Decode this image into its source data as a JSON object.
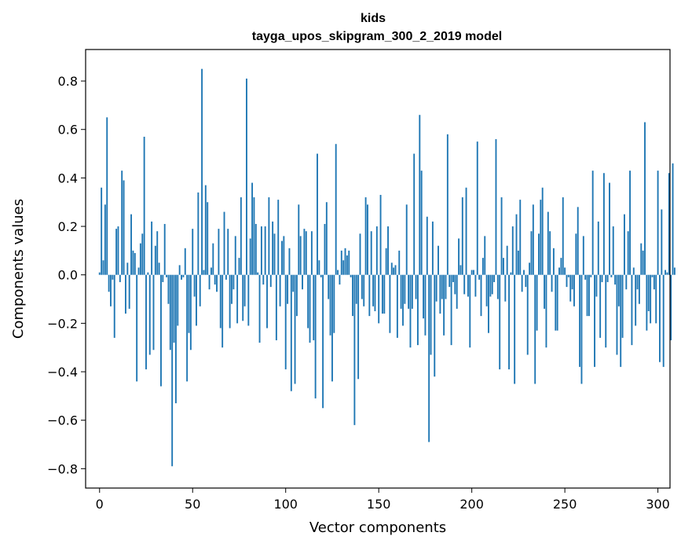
{
  "chart_data": {
    "type": "bar",
    "title": "kids",
    "subtitle": "tayga_upos_skipgram_300_2_2019 model",
    "xlabel": "Vector components",
    "ylabel": "Components values",
    "xlim": [
      -7.5,
      306.5
    ],
    "ylim": [
      -0.88,
      0.93
    ],
    "grid": false,
    "bar_color": "#1f77b4",
    "x_ticks": [
      0,
      50,
      100,
      150,
      200,
      250,
      300
    ],
    "x_tick_labels": [
      "0",
      "50",
      "100",
      "150",
      "200",
      "250",
      "300"
    ],
    "y_ticks": [
      -0.8,
      -0.6,
      -0.4,
      -0.2,
      0.0,
      0.2,
      0.4,
      0.6,
      0.8
    ],
    "y_tick_labels": [
      "−0.8",
      "−0.6",
      "−0.4",
      "−0.2",
      "0.0",
      "0.2",
      "0.4",
      "0.6",
      "0.8"
    ],
    "values": [
      0.01,
      0.36,
      0.06,
      0.29,
      0.65,
      -0.07,
      -0.13,
      -0.02,
      -0.26,
      0.19,
      0.2,
      -0.03,
      0.43,
      0.39,
      -0.16,
      0.05,
      -0.14,
      0.25,
      0.1,
      0.09,
      -0.44,
      0.03,
      0.13,
      0.17,
      0.57,
      -0.39,
      0.01,
      -0.33,
      0.22,
      -0.31,
      0.12,
      0.18,
      0.05,
      -0.46,
      -0.03,
      0.21,
      -0.01,
      -0.12,
      -0.31,
      -0.79,
      -0.28,
      -0.53,
      -0.21,
      0.04,
      -0.02,
      -0.01,
      0.11,
      -0.44,
      -0.24,
      -0.31,
      0.19,
      -0.09,
      -0.21,
      0.34,
      -0.13,
      0.85,
      0.02,
      0.37,
      0.3,
      -0.06,
      0.03,
      0.13,
      -0.04,
      -0.07,
      0.19,
      -0.22,
      -0.3,
      0.26,
      -0.02,
      0.19,
      -0.22,
      -0.12,
      -0.06,
      0.16,
      -0.2,
      0.07,
      0.32,
      -0.19,
      -0.13,
      0.81,
      -0.21,
      0.15,
      0.38,
      0.32,
      0.21,
      0.01,
      -0.28,
      0.2,
      -0.04,
      0.2,
      -0.22,
      0.32,
      -0.05,
      0.22,
      0.17,
      -0.27,
      0.31,
      -0.13,
      0.14,
      0.16,
      -0.39,
      -0.12,
      0.11,
      -0.48,
      -0.07,
      -0.45,
      -0.17,
      0.29,
      0.16,
      -0.06,
      0.19,
      0.18,
      -0.22,
      -0.28,
      0.18,
      -0.27,
      -0.51,
      0.5,
      0.06,
      -0.01,
      -0.55,
      0.21,
      0.3,
      -0.1,
      -0.25,
      -0.44,
      -0.24,
      0.54,
      0.02,
      -0.04,
      0.1,
      0.06,
      0.11,
      0.08,
      0.1,
      -0.01,
      -0.17,
      -0.62,
      -0.12,
      -0.43,
      0.17,
      -0.1,
      -0.13,
      0.32,
      0.29,
      -0.17,
      0.18,
      -0.13,
      -0.15,
      0.2,
      -0.2,
      0.33,
      -0.16,
      -0.16,
      0.11,
      0.2,
      -0.24,
      0.05,
      0.03,
      0.04,
      -0.26,
      0.1,
      -0.14,
      -0.21,
      -0.12,
      0.29,
      -0.14,
      -0.3,
      -0.14,
      0.5,
      -0.1,
      -0.29,
      0.66,
      0.43,
      -0.18,
      -0.25,
      0.24,
      -0.69,
      -0.33,
      0.22,
      -0.42,
      -0.11,
      0.12,
      -0.16,
      -0.1,
      -0.25,
      -0.1,
      0.58,
      -0.05,
      -0.29,
      -0.03,
      -0.08,
      -0.14,
      0.15,
      0.04,
      0.32,
      -0.08,
      0.36,
      -0.09,
      -0.3,
      0.02,
      0.02,
      -0.09,
      0.55,
      -0.02,
      -0.17,
      0.07,
      0.16,
      -0.13,
      -0.24,
      -0.09,
      -0.08,
      -0.03,
      0.56,
      -0.1,
      -0.39,
      0.32,
      0.07,
      -0.11,
      0.12,
      -0.39,
      0.01,
      0.2,
      -0.45,
      0.25,
      0.1,
      0.31,
      -0.07,
      0.02,
      -0.05,
      -0.33,
      0.05,
      0.18,
      0.29,
      -0.45,
      -0.23,
      0.17,
      0.31,
      0.36,
      -0.14,
      -0.3,
      0.26,
      0.18,
      -0.07,
      0.11,
      -0.23,
      -0.23,
      0.03,
      0.07,
      0.32,
      0.03,
      -0.05,
      -0.01,
      -0.11,
      -0.06,
      -0.13,
      0.17,
      0.28,
      -0.38,
      -0.45,
      0.16,
      -0.02,
      -0.17,
      -0.17,
      -0.01,
      0.43,
      -0.38,
      -0.09,
      0.22,
      -0.26,
      -0.03,
      0.42,
      -0.3,
      -0.03,
      0.38,
      -0.01,
      0.2,
      -0.04,
      -0.33,
      -0.13,
      -0.38,
      -0.26,
      0.25,
      -0.06,
      0.18,
      0.43,
      -0.29,
      0.03,
      -0.21,
      -0.06,
      -0.12,
      0.13,
      0.1,
      0.63,
      -0.23,
      -0.15,
      -0.2,
      -0.01,
      -0.06,
      -0.2,
      0.43,
      -0.36,
      0.27,
      -0.38,
      0.02,
      0.01,
      0.42,
      -0.27,
      0.46,
      0.03
    ]
  }
}
